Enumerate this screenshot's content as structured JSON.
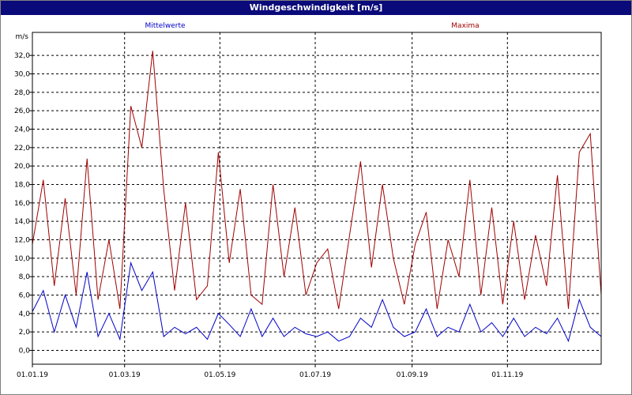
{
  "window": {
    "title": "Windgeschwindigkeit [m/s]"
  },
  "colors": {
    "title_bar": "#0a0a7a",
    "mean_series": "#0000c8",
    "max_series": "#a00000",
    "grid": "#000000",
    "background": "#ffffff"
  },
  "chart_data": {
    "type": "line",
    "title": "Windgeschwindigkeit [m/s]",
    "ylabel": "m/s",
    "xlabel": "",
    "ylim": [
      -1.5,
      34.5
    ],
    "xlim": [
      "2019-01-01",
      "2019-12-31"
    ],
    "y_ticks": [
      "0,0",
      "2,0",
      "4,0",
      "6,0",
      "8,0",
      "10,0",
      "12,0",
      "14,0",
      "16,0",
      "18,0",
      "20,0",
      "22,0",
      "24,0",
      "26,0",
      "28,0",
      "30,0",
      "32,0"
    ],
    "x_ticks": [
      "01.01.19",
      "01.03.19",
      "01.05.19",
      "01.07.19",
      "01.09.19",
      "01.11.19"
    ],
    "grid": true,
    "grid_style": "dashed",
    "series": [
      {
        "name": "Mittelwerte",
        "color": "#0000c8",
        "x": [
          "2019-01-01",
          "2019-01-08",
          "2019-01-15",
          "2019-01-22",
          "2019-01-29",
          "2019-02-05",
          "2019-02-12",
          "2019-02-19",
          "2019-02-26",
          "2019-03-05",
          "2019-03-12",
          "2019-03-19",
          "2019-03-26",
          "2019-04-02",
          "2019-04-09",
          "2019-04-16",
          "2019-04-23",
          "2019-04-30",
          "2019-05-07",
          "2019-05-14",
          "2019-05-21",
          "2019-05-28",
          "2019-06-04",
          "2019-06-11",
          "2019-06-18",
          "2019-06-25",
          "2019-07-02",
          "2019-07-09",
          "2019-07-16",
          "2019-07-23",
          "2019-07-30",
          "2019-08-06",
          "2019-08-13",
          "2019-08-20",
          "2019-08-27",
          "2019-09-03",
          "2019-09-10",
          "2019-09-17",
          "2019-09-24",
          "2019-10-01",
          "2019-10-08",
          "2019-10-15",
          "2019-10-22",
          "2019-10-29",
          "2019-11-05",
          "2019-11-12",
          "2019-11-19",
          "2019-11-26",
          "2019-12-03",
          "2019-12-10",
          "2019-12-17",
          "2019-12-24",
          "2019-12-31"
        ],
        "values": [
          4.2,
          6.5,
          2.0,
          6.0,
          2.5,
          8.5,
          1.5,
          4.0,
          1.2,
          9.5,
          6.5,
          8.5,
          1.5,
          2.5,
          1.8,
          2.5,
          1.2,
          4.0,
          2.8,
          1.5,
          4.5,
          1.5,
          3.5,
          1.5,
          2.5,
          1.8,
          1.5,
          2.0,
          1.0,
          1.5,
          3.5,
          2.5,
          5.5,
          2.5,
          1.5,
          2.0,
          4.5,
          1.5,
          2.5,
          2.0,
          5.0,
          2.0,
          3.0,
          1.5,
          3.5,
          1.5,
          2.5,
          1.8,
          3.5,
          1.0,
          5.5,
          2.5,
          1.5
        ]
      },
      {
        "name": "Maxima",
        "color": "#a00000",
        "x": [
          "2019-01-01",
          "2019-01-08",
          "2019-01-15",
          "2019-01-22",
          "2019-01-29",
          "2019-02-05",
          "2019-02-12",
          "2019-02-19",
          "2019-02-26",
          "2019-03-05",
          "2019-03-12",
          "2019-03-19",
          "2019-03-26",
          "2019-04-02",
          "2019-04-09",
          "2019-04-16",
          "2019-04-23",
          "2019-04-30",
          "2019-05-07",
          "2019-05-14",
          "2019-05-21",
          "2019-05-28",
          "2019-06-04",
          "2019-06-11",
          "2019-06-18",
          "2019-06-25",
          "2019-07-02",
          "2019-07-09",
          "2019-07-16",
          "2019-07-23",
          "2019-07-30",
          "2019-08-06",
          "2019-08-13",
          "2019-08-20",
          "2019-08-27",
          "2019-09-03",
          "2019-09-10",
          "2019-09-17",
          "2019-09-24",
          "2019-10-01",
          "2019-10-08",
          "2019-10-15",
          "2019-10-22",
          "2019-10-29",
          "2019-11-05",
          "2019-11-12",
          "2019-11-19",
          "2019-11-26",
          "2019-12-03",
          "2019-12-10",
          "2019-12-17",
          "2019-12-24",
          "2019-12-31"
        ],
        "values": [
          11.5,
          18.5,
          7.0,
          16.5,
          6.0,
          20.8,
          5.5,
          12.0,
          4.5,
          26.5,
          22.0,
          32.5,
          17.5,
          6.5,
          16.0,
          5.5,
          7.0,
          21.5,
          9.5,
          17.5,
          6.0,
          5.0,
          18.0,
          8.0,
          15.5,
          6.0,
          9.5,
          11.0,
          4.5,
          12.5,
          20.5,
          9.0,
          18.0,
          10.0,
          5.0,
          11.5,
          15.0,
          4.5,
          12.0,
          8.0,
          18.5,
          6.0,
          15.5,
          5.0,
          14.0,
          5.5,
          12.5,
          7.0,
          19.0,
          4.5,
          21.5,
          23.5,
          6.0
        ]
      }
    ],
    "legend": [
      {
        "label": "Mittelwerte",
        "color": "#0000c8",
        "position": "top-center-left"
      },
      {
        "label": "Maxima",
        "color": "#a00000",
        "position": "top-center-right"
      }
    ]
  }
}
